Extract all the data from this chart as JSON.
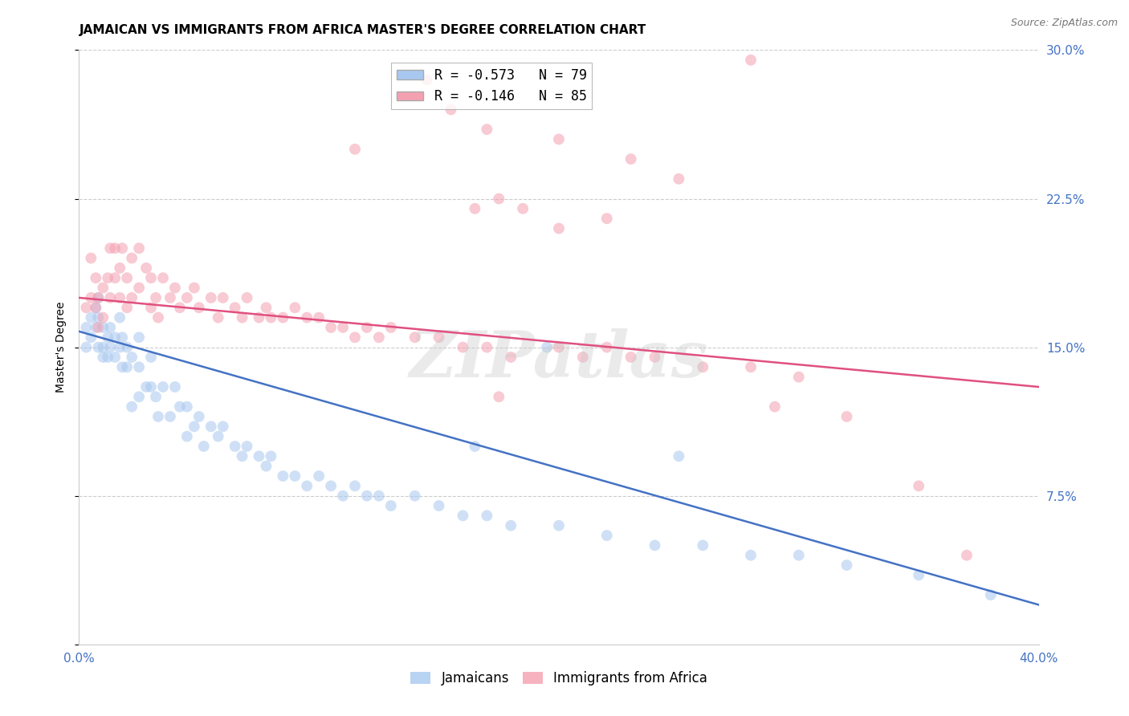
{
  "title": "JAMAICAN VS IMMIGRANTS FROM AFRICA MASTER'S DEGREE CORRELATION CHART",
  "source": "Source: ZipAtlas.com",
  "ylabel": "Master's Degree",
  "watermark": "ZIPatlas",
  "xmin": 0.0,
  "xmax": 0.4,
  "ymin": 0.0,
  "ymax": 0.3,
  "yticks": [
    0.0,
    0.075,
    0.15,
    0.225,
    0.3
  ],
  "ytick_labels": [
    "",
    "7.5%",
    "15.0%",
    "22.5%",
    "30.0%"
  ],
  "xticks": [
    0.0,
    0.1,
    0.2,
    0.3,
    0.4
  ],
  "xtick_labels": [
    "0.0%",
    "",
    "",
    "",
    "40.0%"
  ],
  "legend_entries": [
    {
      "label": "R = -0.573   N = 79",
      "color": "#A8C8F0"
    },
    {
      "label": "R = -0.146   N = 85",
      "color": "#F4A0B0"
    }
  ],
  "legend_labels": [
    "Jamaicans",
    "Immigrants from Africa"
  ],
  "jamaicans_x": [
    0.003,
    0.003,
    0.005,
    0.005,
    0.007,
    0.007,
    0.008,
    0.008,
    0.008,
    0.01,
    0.01,
    0.01,
    0.012,
    0.012,
    0.013,
    0.013,
    0.015,
    0.015,
    0.017,
    0.017,
    0.018,
    0.018,
    0.02,
    0.02,
    0.022,
    0.022,
    0.025,
    0.025,
    0.025,
    0.028,
    0.03,
    0.03,
    0.032,
    0.033,
    0.035,
    0.038,
    0.04,
    0.042,
    0.045,
    0.045,
    0.048,
    0.05,
    0.052,
    0.055,
    0.058,
    0.06,
    0.065,
    0.068,
    0.07,
    0.075,
    0.078,
    0.08,
    0.085,
    0.09,
    0.095,
    0.1,
    0.105,
    0.11,
    0.115,
    0.12,
    0.125,
    0.13,
    0.14,
    0.15,
    0.16,
    0.17,
    0.18,
    0.2,
    0.22,
    0.24,
    0.26,
    0.28,
    0.3,
    0.32,
    0.35,
    0.38,
    0.165,
    0.195,
    0.25
  ],
  "jamaicans_y": [
    0.16,
    0.15,
    0.165,
    0.155,
    0.17,
    0.16,
    0.175,
    0.165,
    0.15,
    0.16,
    0.15,
    0.145,
    0.155,
    0.145,
    0.16,
    0.15,
    0.155,
    0.145,
    0.165,
    0.15,
    0.155,
    0.14,
    0.15,
    0.14,
    0.145,
    0.12,
    0.155,
    0.14,
    0.125,
    0.13,
    0.145,
    0.13,
    0.125,
    0.115,
    0.13,
    0.115,
    0.13,
    0.12,
    0.12,
    0.105,
    0.11,
    0.115,
    0.1,
    0.11,
    0.105,
    0.11,
    0.1,
    0.095,
    0.1,
    0.095,
    0.09,
    0.095,
    0.085,
    0.085,
    0.08,
    0.085,
    0.08,
    0.075,
    0.08,
    0.075,
    0.075,
    0.07,
    0.075,
    0.07,
    0.065,
    0.065,
    0.06,
    0.06,
    0.055,
    0.05,
    0.05,
    0.045,
    0.045,
    0.04,
    0.035,
    0.025,
    0.1,
    0.15,
    0.095
  ],
  "africa_x": [
    0.003,
    0.005,
    0.005,
    0.007,
    0.007,
    0.008,
    0.008,
    0.01,
    0.01,
    0.012,
    0.013,
    0.013,
    0.015,
    0.015,
    0.017,
    0.017,
    0.018,
    0.02,
    0.02,
    0.022,
    0.022,
    0.025,
    0.025,
    0.028,
    0.03,
    0.03,
    0.032,
    0.033,
    0.035,
    0.038,
    0.04,
    0.042,
    0.045,
    0.048,
    0.05,
    0.055,
    0.058,
    0.06,
    0.065,
    0.068,
    0.07,
    0.075,
    0.078,
    0.08,
    0.085,
    0.09,
    0.095,
    0.1,
    0.105,
    0.11,
    0.115,
    0.12,
    0.125,
    0.13,
    0.14,
    0.15,
    0.16,
    0.17,
    0.18,
    0.2,
    0.21,
    0.22,
    0.23,
    0.24,
    0.26,
    0.28,
    0.3,
    0.17,
    0.2,
    0.23,
    0.145,
    0.25,
    0.28,
    0.155,
    0.175,
    0.115,
    0.22,
    0.185,
    0.2,
    0.165,
    0.35,
    0.175,
    0.29,
    0.32,
    0.37
  ],
  "africa_y": [
    0.17,
    0.195,
    0.175,
    0.185,
    0.17,
    0.175,
    0.16,
    0.18,
    0.165,
    0.185,
    0.2,
    0.175,
    0.2,
    0.185,
    0.19,
    0.175,
    0.2,
    0.185,
    0.17,
    0.195,
    0.175,
    0.2,
    0.18,
    0.19,
    0.185,
    0.17,
    0.175,
    0.165,
    0.185,
    0.175,
    0.18,
    0.17,
    0.175,
    0.18,
    0.17,
    0.175,
    0.165,
    0.175,
    0.17,
    0.165,
    0.175,
    0.165,
    0.17,
    0.165,
    0.165,
    0.17,
    0.165,
    0.165,
    0.16,
    0.16,
    0.155,
    0.16,
    0.155,
    0.16,
    0.155,
    0.155,
    0.15,
    0.15,
    0.145,
    0.15,
    0.145,
    0.15,
    0.145,
    0.145,
    0.14,
    0.14,
    0.135,
    0.26,
    0.255,
    0.245,
    0.285,
    0.235,
    0.295,
    0.27,
    0.225,
    0.25,
    0.215,
    0.22,
    0.21,
    0.22,
    0.08,
    0.125,
    0.12,
    0.115,
    0.045
  ],
  "blue_line_x": [
    0.0,
    0.4
  ],
  "blue_line_y": [
    0.158,
    0.02
  ],
  "pink_line_x": [
    0.0,
    0.4
  ],
  "pink_line_y": [
    0.175,
    0.13
  ],
  "blue_color": "#A8C8F0",
  "pink_color": "#F4A0B0",
  "blue_line_color": "#4472C4",
  "pink_line_color": "#E05080",
  "dot_size": 100,
  "dot_alpha": 0.55,
  "background_color": "#FFFFFF",
  "grid_color": "#CCCCCC",
  "title_fontsize": 11,
  "axis_label_fontsize": 10,
  "tick_fontsize": 11,
  "tick_color": "#4472C4",
  "right_tick_color": "#4472C4"
}
